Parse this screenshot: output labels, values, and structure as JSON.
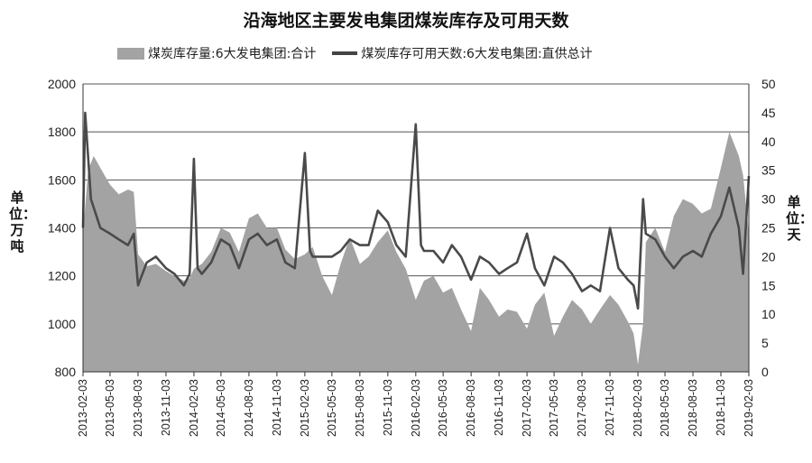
{
  "chart_data": {
    "type": "area+line",
    "title": "沿海地区主要发电集团煤炭库存及可用天数",
    "legend": {
      "placement": "top",
      "entries": [
        "煤炭库存量:6大发电集团:合计",
        "煤炭库存可用天数:6大发电集团:直供总计"
      ]
    },
    "y_left": {
      "label": "单位：万吨",
      "min": 800,
      "max": 2000,
      "ticks": [
        800,
        1000,
        1200,
        1400,
        1600,
        1800,
        2000
      ]
    },
    "y_right": {
      "label": "单位：天",
      "min": 0,
      "max": 50,
      "ticks": [
        0,
        5,
        10,
        15,
        20,
        25,
        30,
        35,
        40,
        45,
        50
      ]
    },
    "x_ticks": [
      "2013-02-03",
      "2013-05-03",
      "2013-08-03",
      "2013-11-03",
      "2014-02-03",
      "2014-05-03",
      "2014-08-03",
      "2014-11-03",
      "2015-02-03",
      "2015-05-03",
      "2015-08-03",
      "2015-11-03",
      "2016-02-03",
      "2016-05-03",
      "2016-08-03",
      "2016-11-03",
      "2017-02-03",
      "2017-05-03",
      "2017-08-03",
      "2017-11-03",
      "2018-02-03",
      "2018-05-03",
      "2018-08-03",
      "2018-11-03",
      "2019-02-03"
    ],
    "grid": "horizontal",
    "series": [
      {
        "name": "煤炭库存量:6大发电集团:合计",
        "kind": "area",
        "axis": "left",
        "color": "#a3a3a3",
        "points": [
          [
            "2013-02-03",
            1380
          ],
          [
            "2013-02-20",
            1640
          ],
          [
            "2013-03-10",
            1700
          ],
          [
            "2013-04-01",
            1650
          ],
          [
            "2013-05-03",
            1580
          ],
          [
            "2013-06-01",
            1540
          ],
          [
            "2013-07-01",
            1560
          ],
          [
            "2013-07-20",
            1550
          ],
          [
            "2013-08-03",
            1290
          ],
          [
            "2013-09-01",
            1240
          ],
          [
            "2013-10-01",
            1250
          ],
          [
            "2013-11-03",
            1220
          ],
          [
            "2013-12-01",
            1200
          ],
          [
            "2014-01-01",
            1180
          ],
          [
            "2014-01-20",
            1190
          ],
          [
            "2014-02-03",
            1230
          ],
          [
            "2014-03-01",
            1250
          ],
          [
            "2014-04-01",
            1300
          ],
          [
            "2014-05-03",
            1400
          ],
          [
            "2014-06-01",
            1380
          ],
          [
            "2014-07-01",
            1300
          ],
          [
            "2014-08-03",
            1440
          ],
          [
            "2014-09-01",
            1460
          ],
          [
            "2014-10-01",
            1400
          ],
          [
            "2014-11-03",
            1400
          ],
          [
            "2014-12-01",
            1310
          ],
          [
            "2015-01-01",
            1270
          ],
          [
            "2015-02-03",
            1290
          ],
          [
            "2015-03-01",
            1320
          ],
          [
            "2015-04-01",
            1200
          ],
          [
            "2015-05-03",
            1120
          ],
          [
            "2015-06-01",
            1250
          ],
          [
            "2015-07-01",
            1360
          ],
          [
            "2015-08-03",
            1250
          ],
          [
            "2015-09-01",
            1280
          ],
          [
            "2015-10-01",
            1340
          ],
          [
            "2015-11-03",
            1390
          ],
          [
            "2015-12-01",
            1300
          ],
          [
            "2016-01-01",
            1230
          ],
          [
            "2016-02-03",
            1100
          ],
          [
            "2016-03-01",
            1180
          ],
          [
            "2016-04-01",
            1200
          ],
          [
            "2016-05-03",
            1130
          ],
          [
            "2016-06-01",
            1150
          ],
          [
            "2016-07-01",
            1060
          ],
          [
            "2016-08-03",
            970
          ],
          [
            "2016-09-01",
            1150
          ],
          [
            "2016-10-01",
            1100
          ],
          [
            "2016-11-03",
            1030
          ],
          [
            "2016-12-01",
            1060
          ],
          [
            "2017-01-01",
            1050
          ],
          [
            "2017-02-03",
            980
          ],
          [
            "2017-03-01",
            1080
          ],
          [
            "2017-04-01",
            1130
          ],
          [
            "2017-05-03",
            950
          ],
          [
            "2017-06-01",
            1030
          ],
          [
            "2017-07-01",
            1100
          ],
          [
            "2017-08-03",
            1060
          ],
          [
            "2017-09-01",
            1000
          ],
          [
            "2017-10-01",
            1060
          ],
          [
            "2017-11-03",
            1120
          ],
          [
            "2017-12-01",
            1080
          ],
          [
            "2018-01-01",
            1010
          ],
          [
            "2018-01-20",
            960
          ],
          [
            "2018-02-03",
            830
          ],
          [
            "2018-02-20",
            1000
          ],
          [
            "2018-03-01",
            1340
          ],
          [
            "2018-04-01",
            1400
          ],
          [
            "2018-05-03",
            1300
          ],
          [
            "2018-06-01",
            1450
          ],
          [
            "2018-07-01",
            1520
          ],
          [
            "2018-08-03",
            1500
          ],
          [
            "2018-09-01",
            1460
          ],
          [
            "2018-10-01",
            1480
          ],
          [
            "2018-11-03",
            1650
          ],
          [
            "2018-12-01",
            1800
          ],
          [
            "2019-01-01",
            1700
          ],
          [
            "2019-01-15",
            1620
          ],
          [
            "2019-02-03",
            1380
          ]
        ]
      },
      {
        "name": "煤炭库存可用天数:6大发电集团:直供总计",
        "kind": "line",
        "axis": "right",
        "color": "#4a4a4a",
        "points": [
          [
            "2013-02-03",
            25
          ],
          [
            "2013-02-10",
            45
          ],
          [
            "2013-03-01",
            30
          ],
          [
            "2013-04-01",
            25
          ],
          [
            "2013-05-03",
            24
          ],
          [
            "2013-06-01",
            23
          ],
          [
            "2013-07-01",
            22
          ],
          [
            "2013-07-20",
            24
          ],
          [
            "2013-08-03",
            15
          ],
          [
            "2013-09-01",
            19
          ],
          [
            "2013-10-01",
            20
          ],
          [
            "2013-11-03",
            18
          ],
          [
            "2013-12-01",
            17
          ],
          [
            "2014-01-01",
            15
          ],
          [
            "2014-01-20",
            17
          ],
          [
            "2014-02-03",
            37
          ],
          [
            "2014-02-15",
            18
          ],
          [
            "2014-03-01",
            17
          ],
          [
            "2014-04-01",
            19
          ],
          [
            "2014-05-03",
            23
          ],
          [
            "2014-06-01",
            22
          ],
          [
            "2014-07-01",
            18
          ],
          [
            "2014-08-03",
            23
          ],
          [
            "2014-09-01",
            24
          ],
          [
            "2014-10-01",
            22
          ],
          [
            "2014-11-03",
            23
          ],
          [
            "2014-12-01",
            19
          ],
          [
            "2015-01-01",
            18
          ],
          [
            "2015-02-03",
            38
          ],
          [
            "2015-02-20",
            21
          ],
          [
            "2015-03-01",
            20
          ],
          [
            "2015-04-01",
            20
          ],
          [
            "2015-05-03",
            20
          ],
          [
            "2015-06-01",
            21
          ],
          [
            "2015-07-01",
            23
          ],
          [
            "2015-08-03",
            22
          ],
          [
            "2015-09-01",
            22
          ],
          [
            "2015-10-01",
            28
          ],
          [
            "2015-11-03",
            26
          ],
          [
            "2015-12-01",
            22
          ],
          [
            "2016-01-01",
            20
          ],
          [
            "2016-02-03",
            43
          ],
          [
            "2016-02-20",
            22
          ],
          [
            "2016-03-01",
            21
          ],
          [
            "2016-04-01",
            21
          ],
          [
            "2016-05-03",
            19
          ],
          [
            "2016-06-01",
            22
          ],
          [
            "2016-07-01",
            20
          ],
          [
            "2016-08-03",
            16
          ],
          [
            "2016-09-01",
            20
          ],
          [
            "2016-10-01",
            19
          ],
          [
            "2016-11-03",
            17
          ],
          [
            "2016-12-01",
            18
          ],
          [
            "2017-01-01",
            19
          ],
          [
            "2017-02-03",
            24
          ],
          [
            "2017-03-01",
            18
          ],
          [
            "2017-04-01",
            15
          ],
          [
            "2017-05-03",
            20
          ],
          [
            "2017-06-01",
            19
          ],
          [
            "2017-07-01",
            17
          ],
          [
            "2017-08-03",
            14
          ],
          [
            "2017-09-01",
            15
          ],
          [
            "2017-10-01",
            14
          ],
          [
            "2017-11-03",
            25
          ],
          [
            "2017-12-01",
            18
          ],
          [
            "2018-01-01",
            16
          ],
          [
            "2018-01-20",
            15
          ],
          [
            "2018-02-03",
            11
          ],
          [
            "2018-02-20",
            30
          ],
          [
            "2018-03-01",
            24
          ],
          [
            "2018-04-01",
            23
          ],
          [
            "2018-05-03",
            20
          ],
          [
            "2018-06-01",
            18
          ],
          [
            "2018-07-01",
            20
          ],
          [
            "2018-08-03",
            21
          ],
          [
            "2018-09-01",
            20
          ],
          [
            "2018-10-01",
            24
          ],
          [
            "2018-11-03",
            27
          ],
          [
            "2018-12-01",
            32
          ],
          [
            "2019-01-01",
            25
          ],
          [
            "2019-01-15",
            17
          ],
          [
            "2019-02-03",
            34
          ]
        ]
      }
    ]
  }
}
